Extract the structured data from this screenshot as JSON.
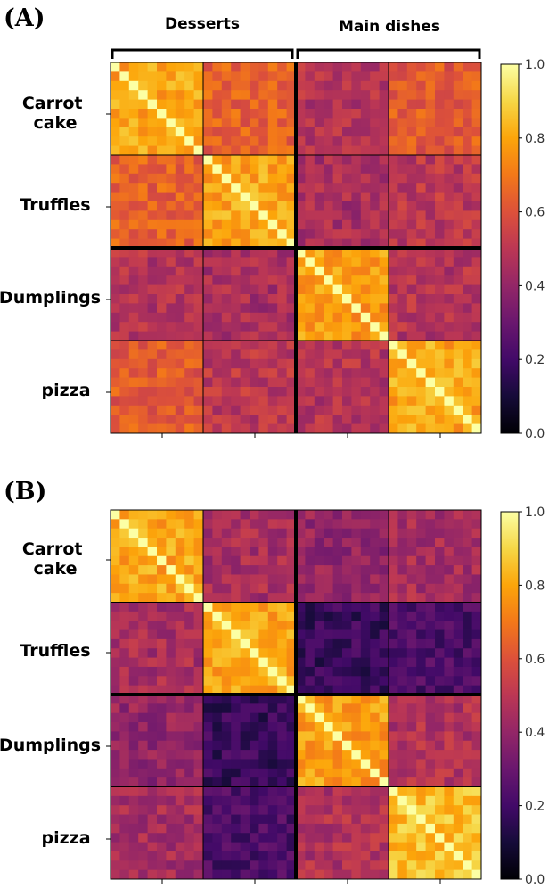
{
  "chart_data": [
    {
      "type": "heatmap",
      "panel_label": "(A)",
      "group_labels": [
        "Desserts",
        "Main dishes"
      ],
      "categories": [
        "Carrot cake",
        "Truffles",
        "Dumplings",
        "pizza"
      ],
      "category_lines": [
        [
          "Carrot",
          "cake"
        ],
        [
          "Truffles"
        ],
        [
          "Dumplings"
        ],
        [
          "pizza"
        ]
      ],
      "items_per_category": 10,
      "block_means": [
        [
          0.8,
          0.64,
          0.48,
          0.62
        ],
        [
          0.64,
          0.8,
          0.45,
          0.5
        ],
        [
          0.48,
          0.45,
          0.78,
          0.48
        ],
        [
          0.62,
          0.5,
          0.48,
          0.8
        ]
      ],
      "diagonal_value": 1.0,
      "colorbar": {
        "colormap": "inferno",
        "range": [
          0.0,
          1.0
        ],
        "ticks": [
          "0.0",
          "0.2",
          "0.4",
          "0.6",
          "0.8",
          "1.0"
        ]
      }
    },
    {
      "type": "heatmap",
      "panel_label": "(B)",
      "group_labels": [],
      "categories": [
        "Carrot cake",
        "Truffles",
        "Dumplings",
        "pizza"
      ],
      "category_lines": [
        [
          "Carrot",
          "cake"
        ],
        [
          "Truffles"
        ],
        [
          "Dumplings"
        ],
        [
          "pizza"
        ]
      ],
      "items_per_category": 10,
      "block_means": [
        [
          0.8,
          0.45,
          0.4,
          0.45
        ],
        [
          0.45,
          0.8,
          0.18,
          0.22
        ],
        [
          0.4,
          0.18,
          0.78,
          0.47
        ],
        [
          0.45,
          0.22,
          0.47,
          0.85
        ]
      ],
      "diagonal_value": 1.0,
      "colorbar": {
        "colormap": "inferno",
        "range": [
          0.0,
          1.0
        ],
        "ticks": [
          "0.0",
          "0.2",
          "0.4",
          "0.6",
          "0.8",
          "1.0"
        ]
      }
    }
  ]
}
